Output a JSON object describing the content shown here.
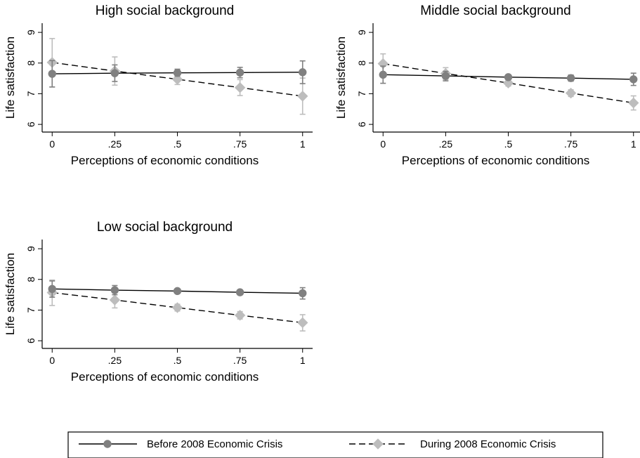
{
  "chart_data": [
    {
      "type": "line",
      "title": "High social background",
      "xlabel": "Perceptions of economic conditions",
      "ylabel": "Life satisfaction",
      "x": [
        0,
        0.25,
        0.5,
        0.75,
        1
      ],
      "x_tick_labels": [
        "0",
        ".25",
        ".5",
        ".75",
        "1"
      ],
      "y_ticks": [
        6,
        7,
        8,
        9
      ],
      "y_tick_labels": [
        "6",
        "7",
        "8",
        "9"
      ],
      "xlim": [
        -0.04,
        1.04
      ],
      "ylim": [
        5.75,
        9.3
      ],
      "series": [
        {
          "name": "Before 2008 Economic Crisis",
          "values": [
            7.65,
            7.67,
            7.68,
            7.69,
            7.7
          ],
          "ci_low": [
            7.22,
            7.4,
            7.57,
            7.52,
            7.33
          ],
          "ci_high": [
            8.08,
            7.94,
            7.8,
            7.86,
            8.07
          ],
          "color": "#808080",
          "marker": "circle",
          "line": "solid"
        },
        {
          "name": "During 2008 Economic Crisis",
          "values": [
            8.02,
            7.74,
            7.47,
            7.2,
            6.92
          ],
          "ci_low": [
            7.22,
            7.28,
            7.3,
            6.94,
            6.33
          ],
          "ci_high": [
            8.8,
            8.2,
            7.64,
            7.46,
            7.51
          ],
          "color": "#bdbdbd",
          "marker": "diamond",
          "line": "dashed"
        }
      ]
    },
    {
      "type": "line",
      "title": "Middle social background",
      "xlabel": "Perceptions of economic conditions",
      "ylabel": "Life satisfaction",
      "x": [
        0,
        0.25,
        0.5,
        0.75,
        1
      ],
      "x_tick_labels": [
        "0",
        ".25",
        ".5",
        ".75",
        "1"
      ],
      "y_ticks": [
        6,
        7,
        8,
        9
      ],
      "y_tick_labels": [
        "6",
        "7",
        "8",
        "9"
      ],
      "xlim": [
        -0.04,
        1.04
      ],
      "ylim": [
        5.75,
        9.3
      ],
      "series": [
        {
          "name": "Before 2008 Economic Crisis",
          "values": [
            7.62,
            7.58,
            7.54,
            7.51,
            7.47
          ],
          "ci_low": [
            7.34,
            7.42,
            7.47,
            7.41,
            7.27
          ],
          "ci_high": [
            7.9,
            7.73,
            7.62,
            7.61,
            7.67
          ],
          "color": "#808080",
          "marker": "circle",
          "line": "solid"
        },
        {
          "name": "During 2008 Economic Crisis",
          "values": [
            7.98,
            7.66,
            7.35,
            7.02,
            6.7
          ],
          "ci_low": [
            7.65,
            7.46,
            7.25,
            6.91,
            6.47
          ],
          "ci_high": [
            8.3,
            7.85,
            7.45,
            7.13,
            6.93
          ],
          "color": "#bdbdbd",
          "marker": "diamond",
          "line": "dashed"
        }
      ]
    },
    {
      "type": "line",
      "title": "Low social background",
      "xlabel": "Perceptions of economic conditions",
      "ylabel": "Life satisfaction",
      "x": [
        0,
        0.25,
        0.5,
        0.75,
        1
      ],
      "x_tick_labels": [
        "0",
        ".25",
        ".5",
        ".75",
        "1"
      ],
      "y_ticks": [
        6,
        7,
        8,
        9
      ],
      "y_tick_labels": [
        "6",
        "7",
        "8",
        "9"
      ],
      "xlim": [
        -0.04,
        1.04
      ],
      "ylim": [
        5.75,
        9.3
      ],
      "series": [
        {
          "name": "Before 2008 Economic Crisis",
          "values": [
            7.69,
            7.65,
            7.62,
            7.58,
            7.55
          ],
          "ci_low": [
            7.42,
            7.5,
            7.57,
            7.5,
            7.36
          ],
          "ci_high": [
            7.95,
            7.8,
            7.67,
            7.66,
            7.73
          ],
          "color": "#808080",
          "marker": "circle",
          "line": "solid"
        },
        {
          "name": "During 2008 Economic Crisis",
          "values": [
            7.57,
            7.33,
            7.08,
            6.83,
            6.59
          ],
          "ci_low": [
            7.15,
            7.07,
            6.97,
            6.71,
            6.32
          ],
          "ci_high": [
            7.98,
            7.58,
            7.19,
            6.95,
            6.85
          ],
          "color": "#bdbdbd",
          "marker": "diamond",
          "line": "dashed"
        }
      ]
    }
  ],
  "legend": {
    "position": "bottom",
    "items": [
      {
        "label": "Before 2008 Economic Crisis",
        "color": "#808080",
        "marker": "circle",
        "line": "solid"
      },
      {
        "label": "During 2008 Economic Crisis",
        "color": "#bdbdbd",
        "marker": "diamond",
        "line": "dashed"
      }
    ]
  }
}
